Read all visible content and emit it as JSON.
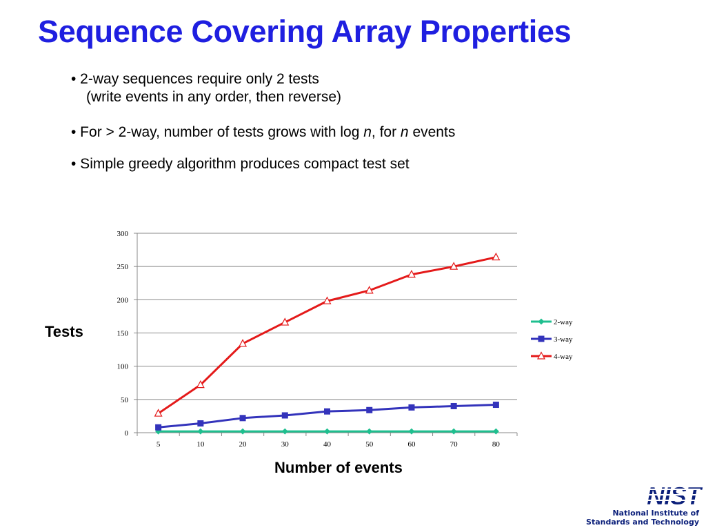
{
  "slide": {
    "title": "Sequence Covering Array Properties",
    "bullets": {
      "b1_line1": "• 2-way sequences require only 2 tests",
      "b1_line2": "(write events in any order, then  reverse)",
      "b2_pre": "• For > 2-way, number of tests grows with log ",
      "b2_n1": "n",
      "b2_mid": ", for ",
      "b2_n2": "n",
      "b2_post": " events",
      "b3": "• Simple greedy algorithm produces compact test set"
    },
    "logo": {
      "wordmark": "NIST",
      "line1": "National Institute of",
      "line2": "Standards and Technology",
      "color": "#0b1f7a"
    }
  },
  "chart_data": {
    "type": "line",
    "ylabel": "Tests",
    "xlabel": "Number of events",
    "categories": [
      "5",
      "10",
      "20",
      "30",
      "40",
      "50",
      "60",
      "70",
      "80"
    ],
    "ylim": [
      0,
      300
    ],
    "yticks": [
      0,
      50,
      100,
      150,
      200,
      250,
      300
    ],
    "grid": true,
    "legend": "right",
    "series": [
      {
        "name": "2-way",
        "values": [
          2,
          2,
          2,
          2,
          2,
          2,
          2,
          2,
          2
        ],
        "color": "#1fbf8f",
        "marker": "diamond"
      },
      {
        "name": "3-way",
        "values": [
          8,
          14,
          22,
          26,
          32,
          34,
          38,
          40,
          42
        ],
        "color": "#3333bb",
        "marker": "square"
      },
      {
        "name": "4-way",
        "values": [
          29,
          72,
          134,
          166,
          198,
          214,
          238,
          250,
          264
        ],
        "color": "#e41a1a",
        "marker": "triangle"
      }
    ]
  }
}
